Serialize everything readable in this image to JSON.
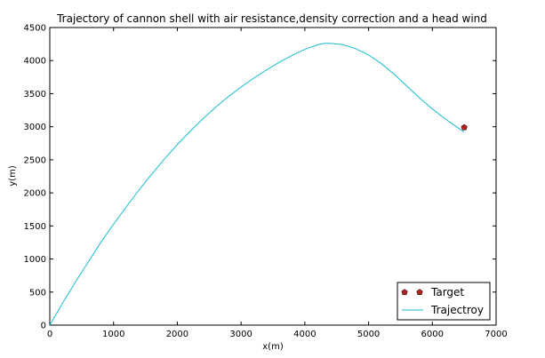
{
  "chart_data": {
    "type": "line",
    "title": "Trajectory of cannon shell with air resistance,density correction and a head wind",
    "xlabel": "x(m)",
    "ylabel": "y(m)",
    "xlim": [
      0,
      7000
    ],
    "ylim": [
      0,
      4500
    ],
    "xticks": [
      0,
      1000,
      2000,
      3000,
      4000,
      5000,
      6000,
      7000
    ],
    "yticks": [
      0,
      500,
      1000,
      1500,
      2000,
      2500,
      3000,
      3500,
      4000,
      4500
    ],
    "grid": false,
    "legend_position": "bottom-right",
    "series": [
      {
        "name": "Trajectroy",
        "kind": "line",
        "color": "#17becf",
        "x": [
          0,
          200,
          400,
          600,
          800,
          1000,
          1200,
          1400,
          1600,
          1800,
          2000,
          2200,
          2400,
          2600,
          2800,
          3000,
          3200,
          3400,
          3600,
          3800,
          4000,
          4200,
          4300,
          4400,
          4600,
          4800,
          5000,
          5200,
          5400,
          5600,
          5800,
          6000,
          6200,
          6400,
          6500
        ],
        "y": [
          0,
          330,
          650,
          950,
          1250,
          1525,
          1790,
          2045,
          2285,
          2515,
          2730,
          2930,
          3120,
          3295,
          3455,
          3600,
          3735,
          3860,
          3975,
          4080,
          4170,
          4240,
          4260,
          4262,
          4240,
          4180,
          4085,
          3955,
          3795,
          3615,
          3435,
          3270,
          3120,
          2985,
          2920
        ]
      },
      {
        "name": "Target",
        "kind": "marker",
        "marker": "pentagon",
        "color": "#b22222",
        "x": [
          6500
        ],
        "y": [
          2990
        ]
      }
    ]
  }
}
